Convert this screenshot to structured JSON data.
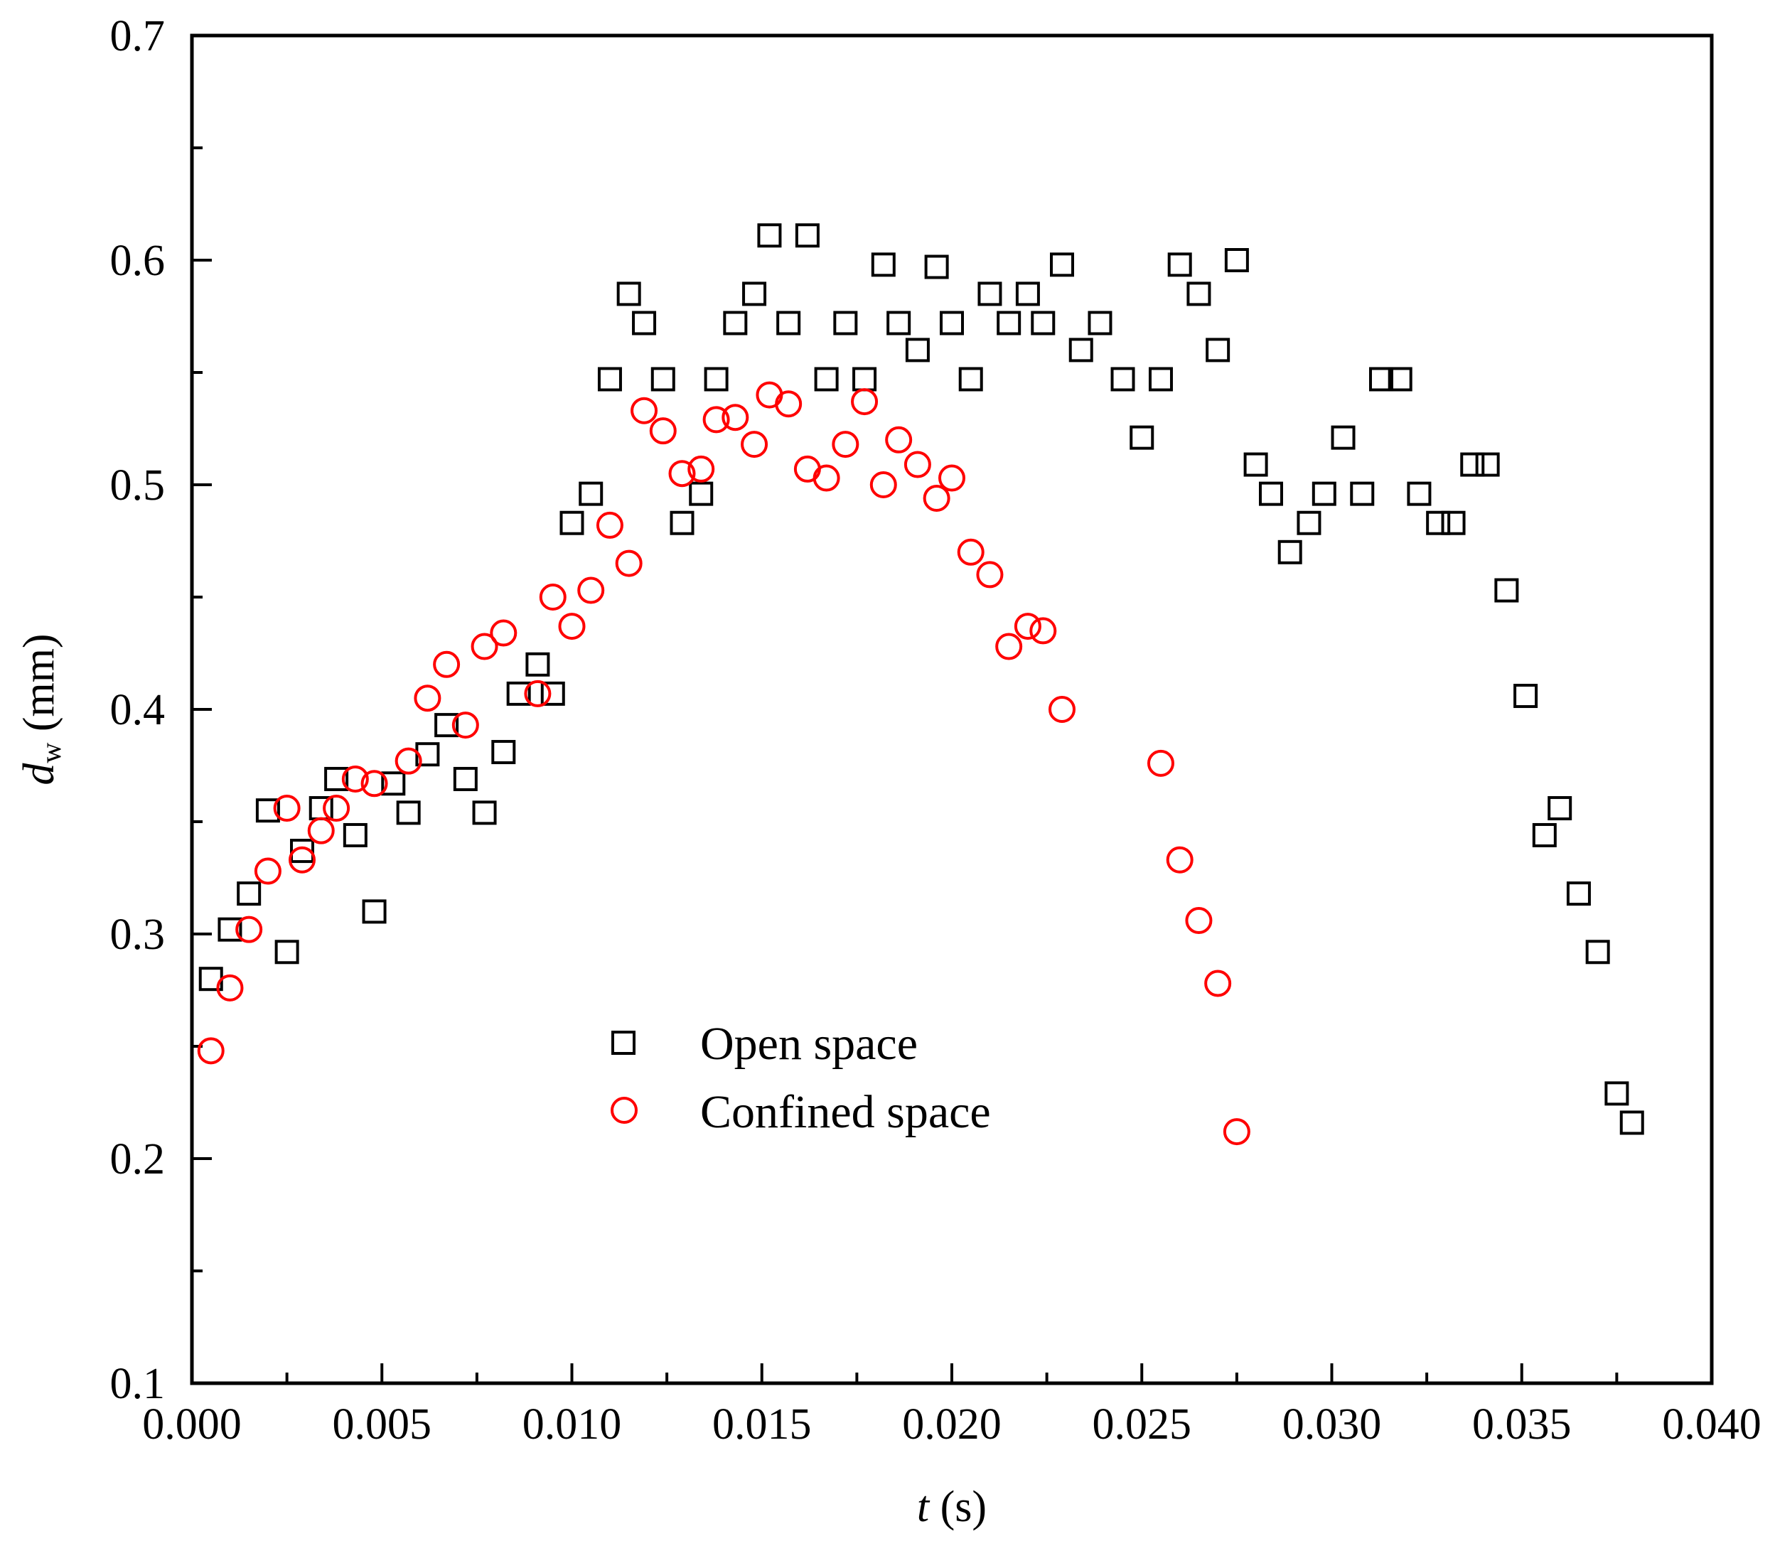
{
  "chart_data": {
    "type": "scatter",
    "title": "",
    "xlabel": {
      "var": "t",
      "unit": " (s)"
    },
    "ylabel": {
      "var": "d",
      "sub": "w",
      "unit": " (mm)"
    },
    "xlim": [
      0.0,
      0.04
    ],
    "ylim": [
      0.1,
      0.7
    ],
    "xticks": [
      0.0,
      0.005,
      0.01,
      0.015,
      0.02,
      0.025,
      0.03,
      0.035,
      0.04
    ],
    "xtick_labels": [
      "0.000",
      "0.005",
      "0.010",
      "0.015",
      "0.020",
      "0.025",
      "0.030",
      "0.035",
      "0.040"
    ],
    "yticks": [
      0.1,
      0.2,
      0.3,
      0.4,
      0.5,
      0.6,
      0.7
    ],
    "ytick_labels": [
      "0.1",
      "0.2",
      "0.3",
      "0.4",
      "0.5",
      "0.6",
      "0.7"
    ],
    "grid": false,
    "legend_position": "center-bottom",
    "series": [
      {
        "name": "Open space",
        "marker": "square",
        "color": "#000000",
        "x": [
          0.0005,
          0.001,
          0.0015,
          0.002,
          0.0025,
          0.0029,
          0.0034,
          0.0038,
          0.0043,
          0.0048,
          0.0053,
          0.0057,
          0.0062,
          0.0067,
          0.0072,
          0.0077,
          0.0082,
          0.0086,
          0.0091,
          0.0095,
          0.01,
          0.0105,
          0.011,
          0.0115,
          0.0119,
          0.0124,
          0.0129,
          0.0134,
          0.0138,
          0.0143,
          0.0148,
          0.0152,
          0.0157,
          0.0162,
          0.0167,
          0.0172,
          0.0177,
          0.0182,
          0.0186,
          0.0191,
          0.0196,
          0.02,
          0.0205,
          0.021,
          0.0215,
          0.022,
          0.0224,
          0.0229,
          0.0234,
          0.0239,
          0.0245,
          0.025,
          0.0255,
          0.026,
          0.0265,
          0.027,
          0.0275,
          0.028,
          0.0284,
          0.0289,
          0.0294,
          0.0298,
          0.0303,
          0.0308,
          0.0313,
          0.0318,
          0.0323,
          0.0328,
          0.0332,
          0.0337,
          0.0341,
          0.0346,
          0.0351,
          0.0356,
          0.036,
          0.0365,
          0.037,
          0.0375,
          0.0379
        ],
        "y": [
          0.28,
          0.302,
          0.318,
          0.355,
          0.292,
          0.337,
          0.356,
          0.369,
          0.344,
          0.31,
          0.367,
          0.354,
          0.38,
          0.393,
          0.369,
          0.354,
          0.381,
          0.407,
          0.42,
          0.407,
          0.483,
          0.496,
          0.547,
          0.585,
          0.572,
          0.547,
          0.483,
          0.496,
          0.547,
          0.572,
          0.585,
          0.611,
          0.572,
          0.611,
          0.547,
          0.572,
          0.547,
          0.598,
          0.572,
          0.56,
          0.597,
          0.572,
          0.547,
          0.585,
          0.572,
          0.585,
          0.572,
          0.598,
          0.56,
          0.572,
          0.547,
          0.521,
          0.547,
          0.598,
          0.585,
          0.56,
          0.6,
          0.509,
          0.496,
          0.47,
          0.483,
          0.496,
          0.521,
          0.496,
          0.547,
          0.547,
          0.496,
          0.483,
          0.483,
          0.509,
          0.509,
          0.453,
          0.406,
          0.344,
          0.356,
          0.318,
          0.292,
          0.229,
          0.216
        ]
      },
      {
        "name": "Confined space",
        "marker": "circle",
        "color": "#ff0000",
        "x": [
          0.0005,
          0.001,
          0.0015,
          0.002,
          0.0025,
          0.0029,
          0.0034,
          0.0038,
          0.0043,
          0.0048,
          0.0057,
          0.0062,
          0.0067,
          0.0072,
          0.0077,
          0.0082,
          0.0091,
          0.0095,
          0.01,
          0.0105,
          0.011,
          0.0115,
          0.0119,
          0.0124,
          0.0129,
          0.0134,
          0.0138,
          0.0143,
          0.0148,
          0.0152,
          0.0157,
          0.0162,
          0.0167,
          0.0172,
          0.0177,
          0.0182,
          0.0186,
          0.0191,
          0.0196,
          0.02,
          0.0205,
          0.021,
          0.0215,
          0.022,
          0.0224,
          0.0229,
          0.0255,
          0.026,
          0.0265,
          0.027,
          0.0275
        ],
        "y": [
          0.248,
          0.276,
          0.302,
          0.328,
          0.356,
          0.333,
          0.346,
          0.356,
          0.369,
          0.367,
          0.377,
          0.405,
          0.42,
          0.393,
          0.428,
          0.434,
          0.407,
          0.45,
          0.437,
          0.453,
          0.482,
          0.465,
          0.533,
          0.524,
          0.505,
          0.507,
          0.529,
          0.53,
          0.518,
          0.54,
          0.536,
          0.507,
          0.503,
          0.518,
          0.537,
          0.5,
          0.52,
          0.509,
          0.494,
          0.503,
          0.47,
          0.46,
          0.428,
          0.437,
          0.435,
          0.4,
          0.376,
          0.333,
          0.306,
          0.278,
          0.212
        ]
      }
    ]
  }
}
